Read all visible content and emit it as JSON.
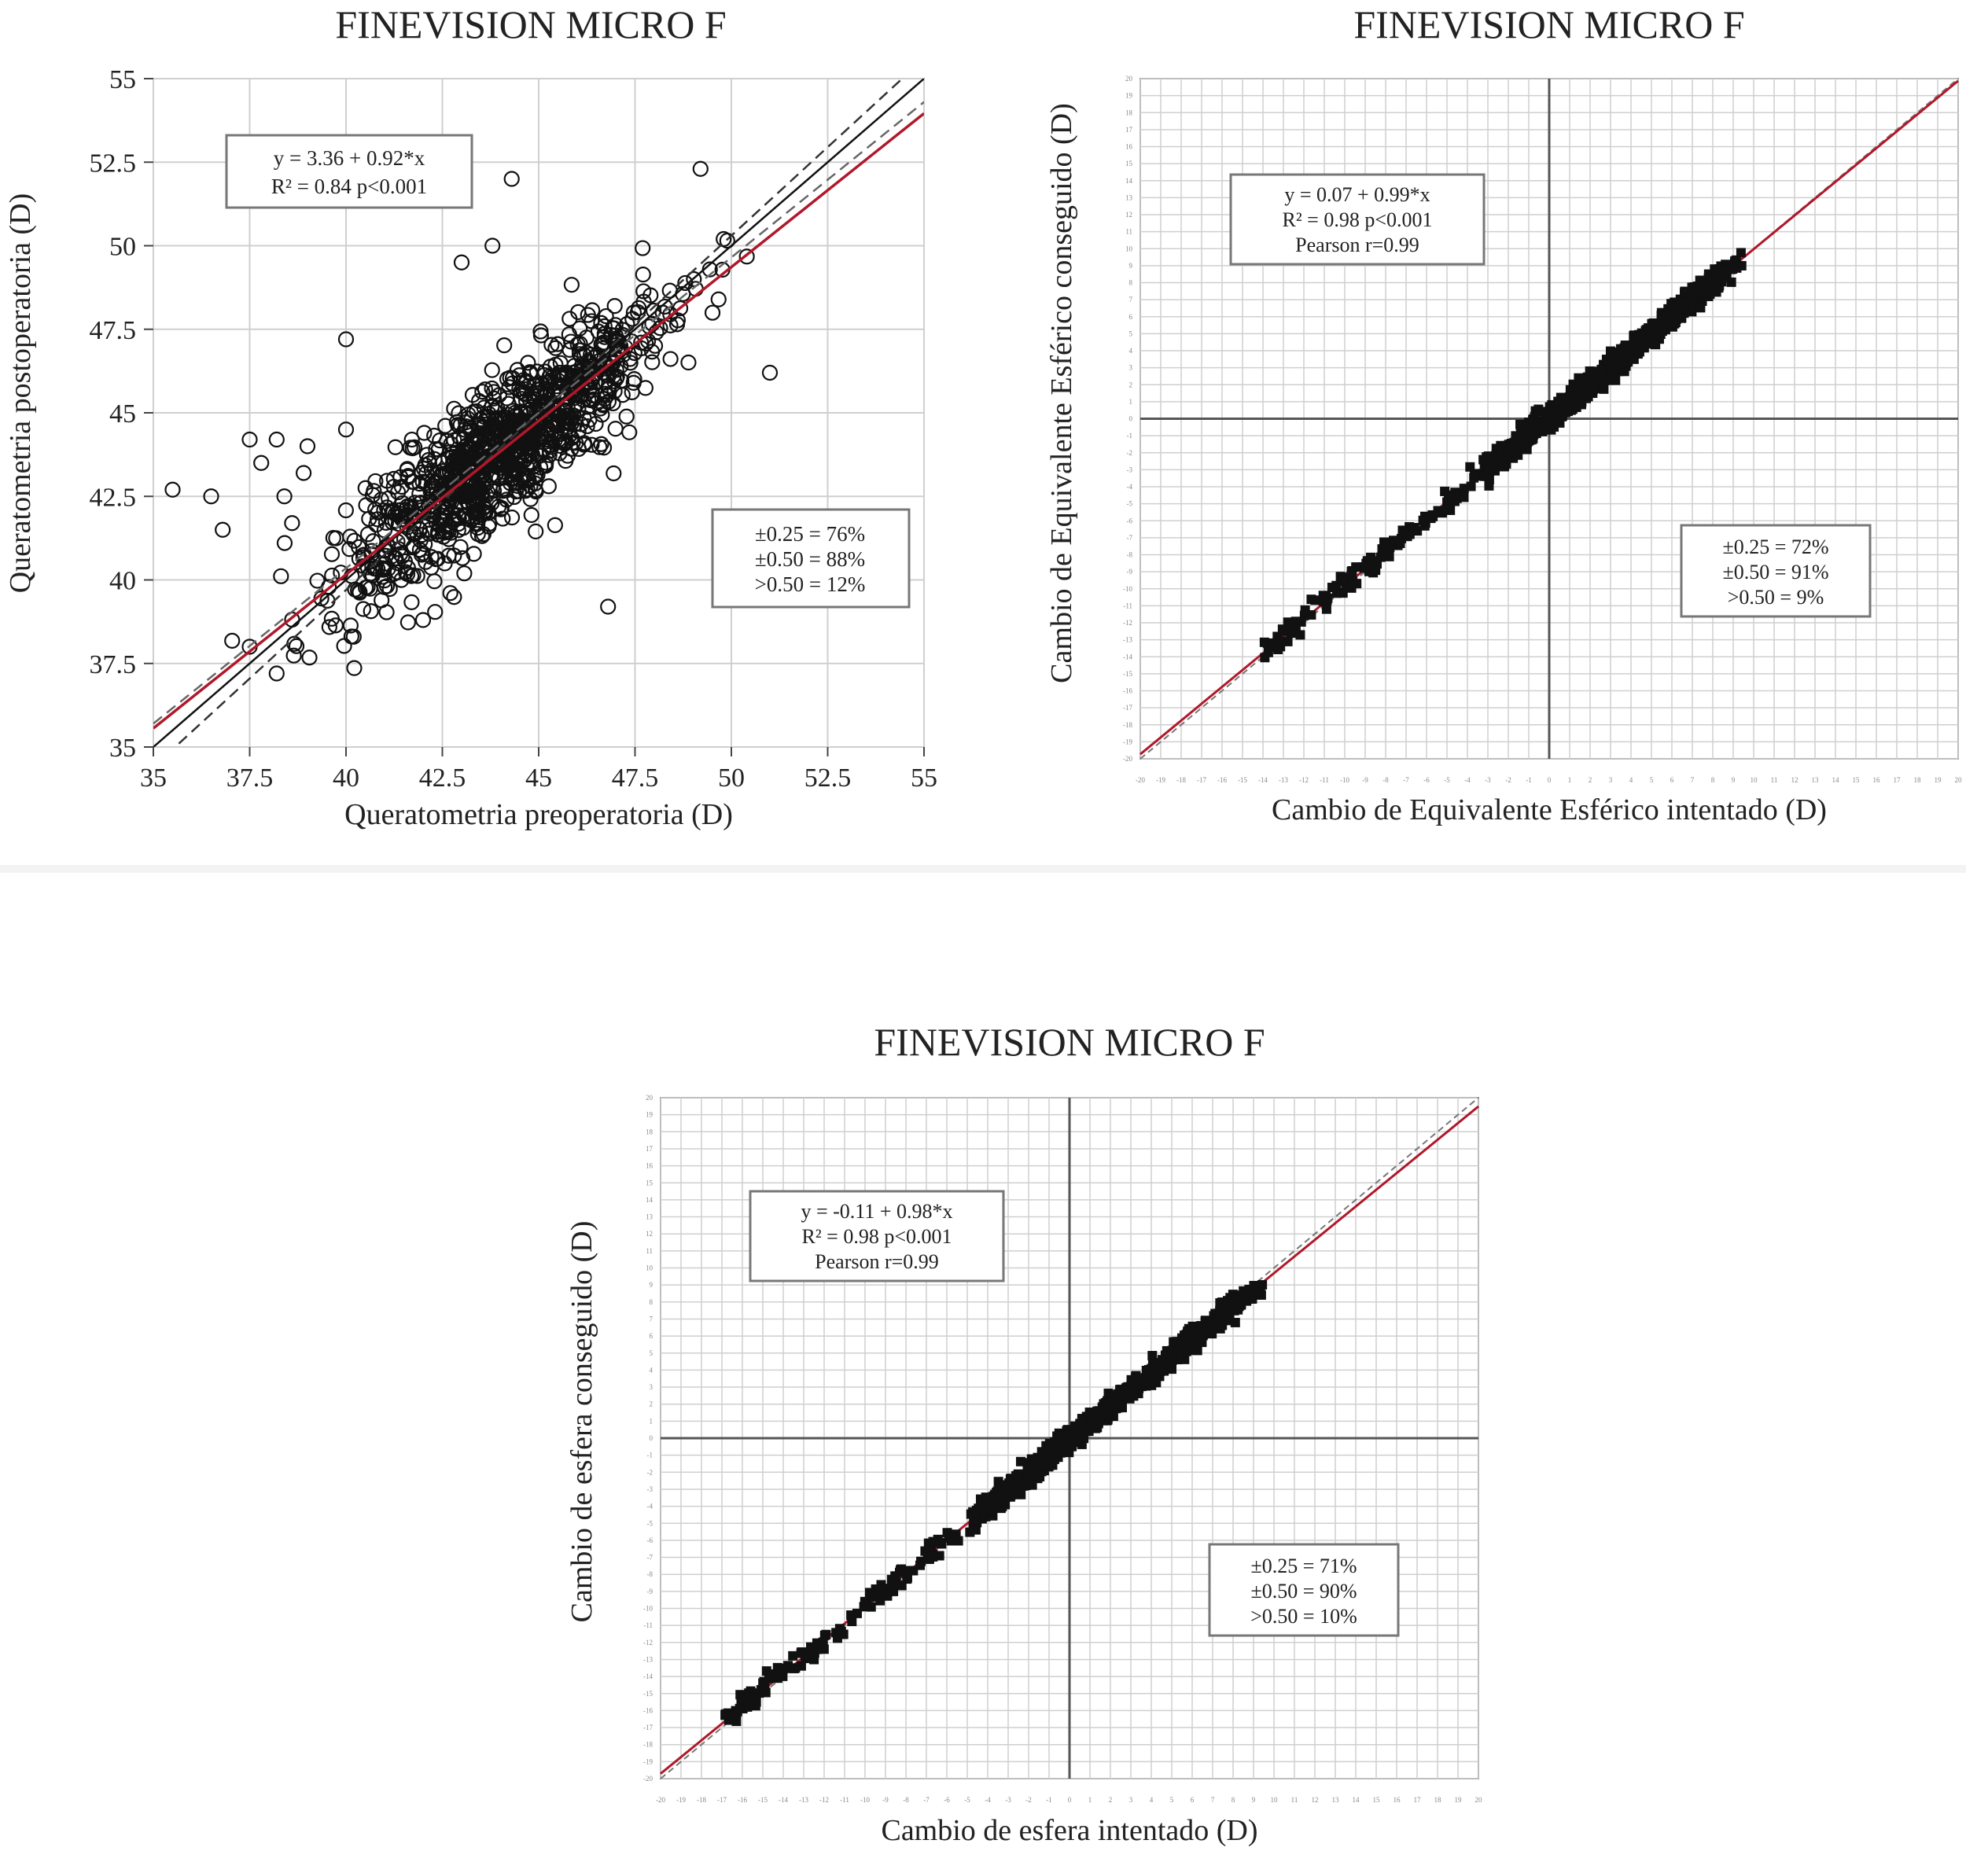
{
  "colors": {
    "points": "#111111",
    "fit": "#b0182a",
    "identity": "#111111",
    "grid": "#cfcfcf",
    "frame": "#888888"
  },
  "chart_data": [
    {
      "type": "scatter",
      "title": "FINEVISION MICRO F",
      "xlabel": "Queratometria preoperatoria (D)",
      "ylabel": "Queratometria postoperatoria (D)",
      "xlim": [
        35,
        55
      ],
      "ylim": [
        35,
        55
      ],
      "ticks": [
        "35",
        "37.5",
        "40",
        "42.5",
        "45",
        "47.5",
        "50",
        "52.5",
        "55"
      ],
      "tick_values": [
        35,
        37.5,
        40,
        42.5,
        45,
        47.5,
        50,
        52.5,
        55
      ],
      "marker": "open-circle",
      "fit": {
        "intercept": 3.36,
        "slope": 0.92
      },
      "equation": [
        "y = 3.36 + 0.92*x",
        "R² = 0.84 p<0.001"
      ],
      "accuracy": [
        "±0.25 = 76%",
        "±0.50 = 88%",
        ">0.50 = 12%"
      ],
      "points_center": [
        44,
        44
      ],
      "points_spread": [
        2.0,
        1.4
      ]
    },
    {
      "type": "scatter",
      "title": "FINEVISION MICRO F",
      "xlabel": "Cambio de Equivalente Esférico intentado (D)",
      "ylabel": "Cambio de Equivalente Esférico conseguido (D)",
      "xlim": [
        -20,
        20
      ],
      "ylim": [
        -20,
        20
      ],
      "grid_step": 1,
      "marker": "filled-square",
      "fit": {
        "intercept": 0.07,
        "slope": 0.99
      },
      "equation": [
        "y = 0.07 + 0.99*x",
        "R² = 0.98 p<0.001",
        "Pearson r=0.99"
      ],
      "accuracy": [
        "±0.25 = 72%",
        "±0.50 = 91%",
        ">0.50 = 9%"
      ],
      "points_range": [
        -14,
        9.5
      ]
    },
    {
      "type": "scatter",
      "title": "FINEVISION MICRO F",
      "xlabel": "Cambio de esfera intentado (D)",
      "ylabel": "Cambio de esfera conseguido (D)",
      "xlim": [
        -20,
        20
      ],
      "ylim": [
        -20,
        20
      ],
      "grid_step": 1,
      "marker": "filled-square",
      "fit": {
        "intercept": -0.11,
        "slope": 0.98
      },
      "equation": [
        "y = -0.11 + 0.98*x",
        "R² = 0.98 p<0.001",
        "Pearson r=0.99"
      ],
      "accuracy": [
        "±0.25 = 71%",
        "±0.50 = 90%",
        ">0.50 = 10%"
      ],
      "points_range": [
        -17,
        9.5
      ]
    }
  ]
}
